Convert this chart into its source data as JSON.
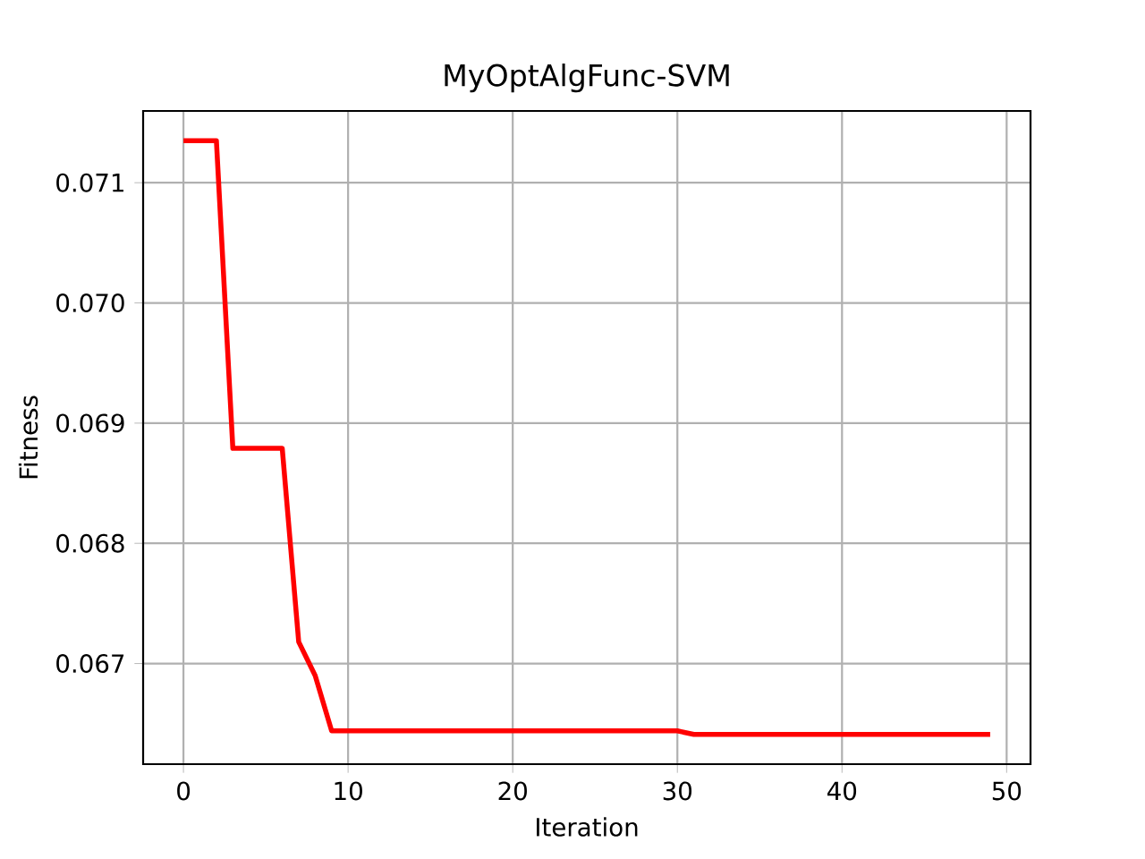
{
  "chart_data": {
    "type": "line",
    "title": "MyOptAlgFunc-SVM",
    "xlabel": "Iteration",
    "ylabel": "Fitness",
    "x": [
      0,
      1,
      2,
      3,
      4,
      5,
      6,
      7,
      8,
      9,
      10,
      11,
      12,
      13,
      14,
      15,
      16,
      17,
      18,
      19,
      20,
      21,
      22,
      23,
      24,
      25,
      26,
      27,
      28,
      29,
      30,
      31,
      32,
      33,
      34,
      35,
      36,
      37,
      38,
      39,
      40,
      41,
      42,
      43,
      44,
      45,
      46,
      47,
      48,
      49
    ],
    "series": [
      {
        "color": "#ff0000",
        "values": [
          0.07135,
          0.07135,
          0.07135,
          0.06879,
          0.06879,
          0.06879,
          0.06879,
          0.06718,
          0.0669,
          0.06644,
          0.06644,
          0.06644,
          0.06644,
          0.06644,
          0.06644,
          0.06644,
          0.06644,
          0.06644,
          0.06644,
          0.06644,
          0.06644,
          0.06644,
          0.06644,
          0.06644,
          0.06644,
          0.06644,
          0.06644,
          0.06644,
          0.06644,
          0.06644,
          0.06644,
          0.06641,
          0.06641,
          0.06641,
          0.06641,
          0.06641,
          0.06641,
          0.06641,
          0.06641,
          0.06641,
          0.06641,
          0.06641,
          0.06641,
          0.06641,
          0.06641,
          0.06641,
          0.06641,
          0.06641,
          0.06641,
          0.06641
        ]
      }
    ],
    "xlim": [
      -2.45,
      51.45
    ],
    "ylim": [
      0.066163,
      0.071597
    ],
    "xticks": [
      0,
      10,
      20,
      30,
      40,
      50
    ],
    "yticks": [
      {
        "value": 0.067,
        "label": "0.067"
      },
      {
        "value": 0.068,
        "label": "0.068"
      },
      {
        "value": 0.069,
        "label": "0.069"
      },
      {
        "value": 0.07,
        "label": "0.070"
      },
      {
        "value": 0.071,
        "label": "0.071"
      }
    ],
    "grid": true,
    "marker": "none",
    "line_style": "solid",
    "legend": false
  }
}
